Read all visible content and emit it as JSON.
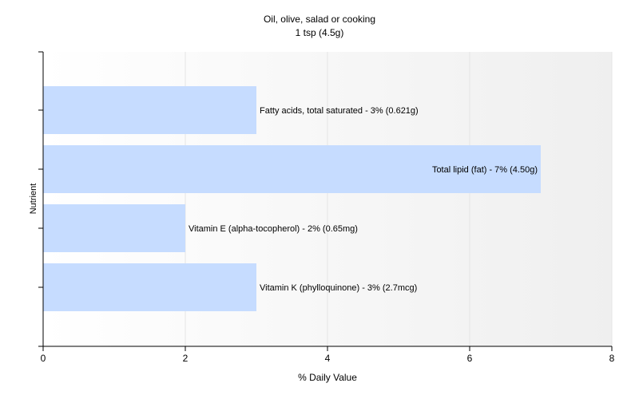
{
  "chart_data": {
    "type": "bar",
    "orientation": "horizontal",
    "title": "Oil, olive, salad or cooking",
    "subtitle": "1 tsp (4.5g)",
    "xlabel": "% Daily Value",
    "ylabel": "Nutrient",
    "xlim": [
      0,
      8
    ],
    "xticks": [
      "0",
      "2",
      "4",
      "6",
      "8"
    ],
    "grid": true,
    "bar_color": "#c6dcff",
    "categories": [
      "Fatty acids, total saturated",
      "Total lipid (fat)",
      "Vitamin E (alpha-tocopherol)",
      "Vitamin K (phylloquinone)"
    ],
    "values": [
      3,
      7,
      2,
      3
    ],
    "data_labels": [
      "Fatty acids, total saturated - 3% (0.621g)",
      "Total lipid (fat) - 7% (4.50g)",
      "Vitamin E (alpha-tocopherol) - 2% (0.65mg)",
      "Vitamin K (phylloquinone) - 3% (2.7mcg)"
    ]
  }
}
